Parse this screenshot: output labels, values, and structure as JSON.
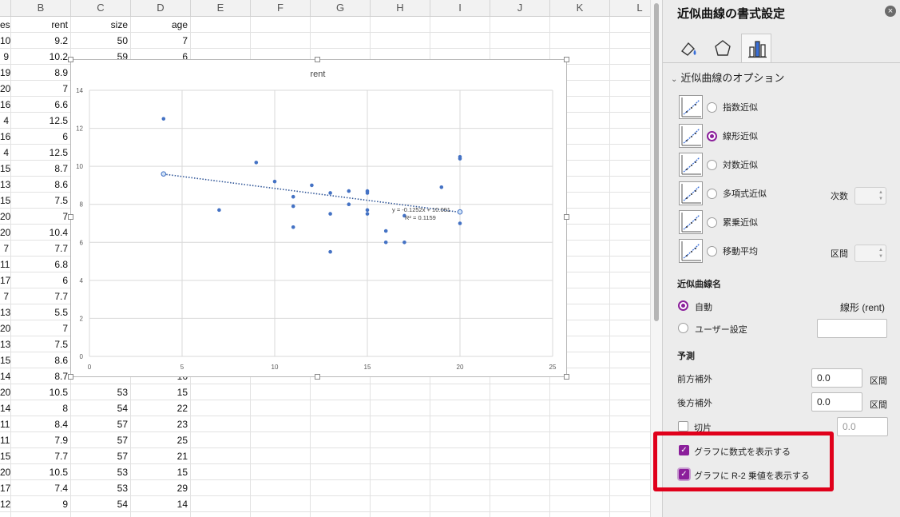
{
  "sheet": {
    "column_headers": [
      "B",
      "C",
      "D",
      "E",
      "F",
      "G",
      "H",
      "I",
      "J",
      "K",
      "L"
    ],
    "header_row": [
      "es",
      "rent",
      "size",
      "age"
    ],
    "rows": [
      [
        "10",
        "9.2",
        "50",
        "7"
      ],
      [
        "9",
        "10.2",
        "59",
        "6"
      ],
      [
        "19",
        "8.9",
        "",
        ""
      ],
      [
        "20",
        "7",
        "",
        ""
      ],
      [
        "16",
        "6.6",
        "",
        ""
      ],
      [
        "4",
        "12.5",
        "",
        ""
      ],
      [
        "16",
        "6",
        "",
        ""
      ],
      [
        "4",
        "12.5",
        "",
        ""
      ],
      [
        "15",
        "8.7",
        "",
        ""
      ],
      [
        "13",
        "8.6",
        "",
        ""
      ],
      [
        "15",
        "7.5",
        "",
        ""
      ],
      [
        "20",
        "7",
        "",
        ""
      ],
      [
        "20",
        "10.4",
        "",
        ""
      ],
      [
        "7",
        "7.7",
        "",
        ""
      ],
      [
        "11",
        "6.8",
        "",
        ""
      ],
      [
        "17",
        "6",
        "",
        ""
      ],
      [
        "7",
        "7.7",
        "",
        ""
      ],
      [
        "13",
        "5.5",
        "",
        ""
      ],
      [
        "20",
        "7",
        "",
        ""
      ],
      [
        "13",
        "7.5",
        "",
        ""
      ],
      [
        "15",
        "8.6",
        "",
        ""
      ],
      [
        "14",
        "8.7",
        "",
        "16"
      ],
      [
        "20",
        "10.5",
        "53",
        "15"
      ],
      [
        "14",
        "8",
        "54",
        "22"
      ],
      [
        "11",
        "8.4",
        "57",
        "23"
      ],
      [
        "11",
        "7.9",
        "57",
        "25"
      ],
      [
        "15",
        "7.7",
        "57",
        "21"
      ],
      [
        "20",
        "10.5",
        "53",
        "15"
      ],
      [
        "17",
        "7.4",
        "53",
        "29"
      ],
      [
        "12",
        "9",
        "54",
        "14"
      ]
    ]
  },
  "chart": {
    "title": "rent",
    "equation": "y = -0.1252x + 10.091",
    "r_squared": "R² = 0.1159"
  },
  "chart_data": {
    "type": "scatter",
    "title": "rent",
    "xlim": [
      0,
      25
    ],
    "ylim": [
      0,
      14
    ],
    "x_ticks": [
      "0",
      "5",
      "10",
      "15",
      "20",
      "25"
    ],
    "y_ticks": [
      "0",
      "2",
      "4",
      "6",
      "8",
      "10",
      "12",
      "14"
    ],
    "grid": true,
    "points": [
      [
        4,
        12.5
      ],
      [
        9,
        10.2
      ],
      [
        10,
        9.2
      ],
      [
        7,
        7.7
      ],
      [
        11,
        8.4
      ],
      [
        11,
        7.9
      ],
      [
        11,
        6.8
      ],
      [
        12,
        9
      ],
      [
        13,
        8.6
      ],
      [
        13,
        7.5
      ],
      [
        13,
        5.5
      ],
      [
        14,
        8.7
      ],
      [
        14,
        8
      ],
      [
        15,
        8.7
      ],
      [
        15,
        8.6
      ],
      [
        15,
        7.7
      ],
      [
        15,
        7.5
      ],
      [
        16,
        6.6
      ],
      [
        16,
        6
      ],
      [
        17,
        7.4
      ],
      [
        17,
        6
      ],
      [
        19,
        8.9
      ],
      [
        20,
        10.5
      ],
      [
        20,
        10.4
      ],
      [
        20,
        7
      ],
      [
        20,
        7.6
      ],
      [
        4,
        9.6
      ]
    ],
    "trendline": {
      "slope": -0.1252,
      "intercept": 10.091,
      "x_range": [
        4,
        20
      ]
    },
    "marker_color": "#4472c4"
  },
  "panel": {
    "title": "近似曲線の書式設定",
    "close_icon": "×",
    "section": "近似曲線のオプション",
    "options": [
      {
        "label": "指数近似",
        "selected": false
      },
      {
        "label": "線形近似",
        "selected": true
      },
      {
        "label": "対数近似",
        "selected": false
      },
      {
        "label": "多項式近似",
        "selected": false
      },
      {
        "label": "累乗近似",
        "selected": false
      },
      {
        "label": "移動平均",
        "selected": false
      }
    ],
    "order_label": "次数",
    "period_label": "区間",
    "name_heading": "近似曲線名",
    "auto_label": "自動",
    "auto_value": "線形 (rent)",
    "custom_label": "ユーザー設定",
    "forecast_heading": "予測",
    "forward_label": "前方補外",
    "forward_value": "0.0",
    "backward_label": "後方補外",
    "backward_value": "0.0",
    "unit_label": "区間",
    "intercept_label": "切片",
    "intercept_value": "0.0",
    "show_equation_label": "グラフに数式を表示する",
    "show_r2_label": "グラフに R-2 乗値を表示する",
    "accent_color": "#8b1f9b",
    "highlight_color": "#e0001b"
  }
}
